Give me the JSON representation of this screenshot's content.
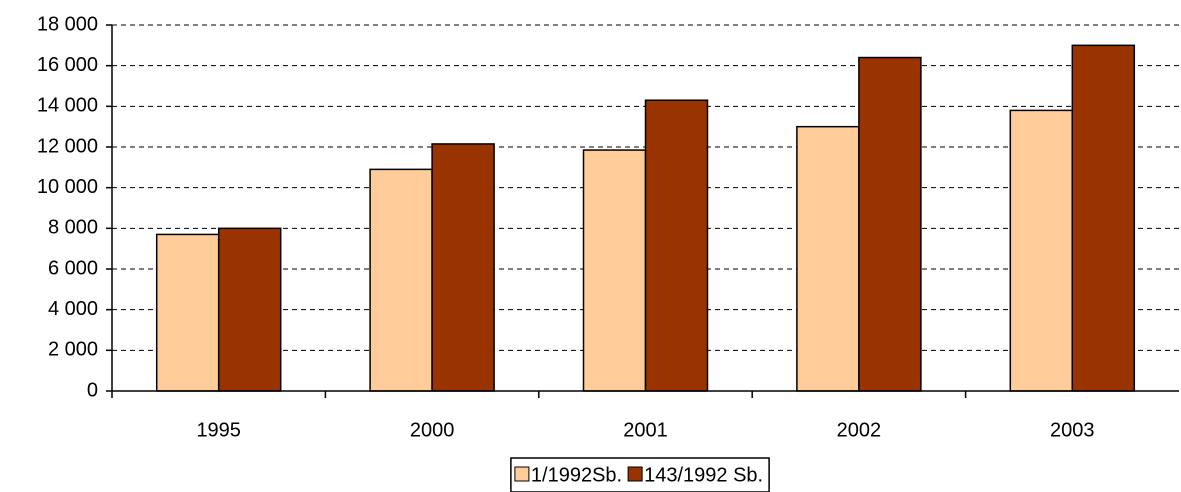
{
  "chart_data": {
    "type": "bar",
    "categories": [
      "1995",
      "2000",
      "2001",
      "2002",
      "2003"
    ],
    "series": [
      {
        "name": "1/1992Sb.",
        "color": "#ffcc99",
        "values": [
          7700,
          10900,
          11850,
          13000,
          13800
        ]
      },
      {
        "name": "143/1992 Sb.",
        "color": "#993300",
        "values": [
          8000,
          12150,
          14300,
          16400,
          17000
        ]
      }
    ],
    "ylim": [
      0,
      18000
    ],
    "yticks": [
      0,
      {
        "value": 2000,
        "label": "2 000"
      },
      {
        "value": 4000,
        "label": "4 000"
      },
      {
        "value": 6000,
        "label": "6 000"
      },
      {
        "value": 8000,
        "label": "8 000"
      },
      {
        "value": 10000,
        "label": "10 000"
      },
      {
        "value": 12000,
        "label": "12 000"
      },
      {
        "value": 14000,
        "label": "14 000"
      },
      {
        "value": 16000,
        "label": "16 000"
      },
      {
        "value": 18000,
        "label": "18 000"
      }
    ],
    "grid": true,
    "legend": "bottom"
  }
}
